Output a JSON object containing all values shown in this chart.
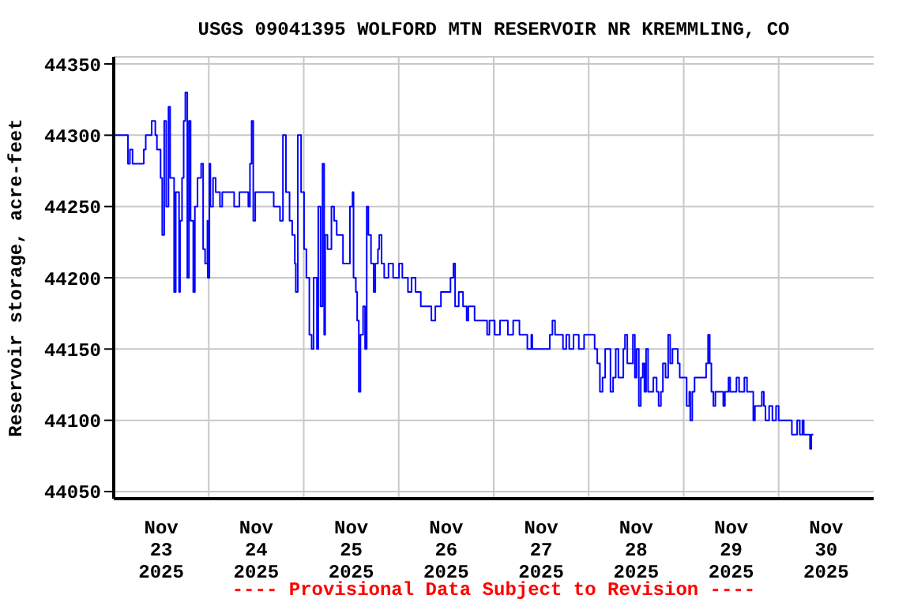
{
  "chart_data": {
    "type": "step",
    "title": "USGS 09041395 WOLFORD MTN RESERVOIR NR KREMMLING, CO",
    "ylabel": "Reservoir storage, acre-feet",
    "annotations": [
      "---- Provisional Data Subject to Revision ----"
    ],
    "x": [
      "2025-11-23T00:15",
      "2025-11-23T03:35",
      "2025-11-23T04:05",
      "2025-11-23T04:45",
      "2025-11-23T07:35",
      "2025-11-23T08:05",
      "2025-11-23T09:35",
      "2025-11-23T10:30",
      "2025-11-23T10:55",
      "2025-11-23T11:50",
      "2025-11-23T12:15",
      "2025-11-23T12:45",
      "2025-11-23T13:15",
      "2025-11-23T13:50",
      "2025-11-23T14:15",
      "2025-11-23T14:55",
      "2025-11-23T15:15",
      "2025-11-23T15:40",
      "2025-11-23T16:30",
      "2025-11-23T16:45",
      "2025-11-23T17:15",
      "2025-11-23T17:40",
      "2025-11-23T18:05",
      "2025-11-23T18:35",
      "2025-11-23T19:00",
      "2025-11-23T19:25",
      "2025-11-23T20:05",
      "2025-11-23T20:30",
      "2025-11-23T21:10",
      "2025-11-23T22:05",
      "2025-11-23T22:35",
      "2025-11-23T23:05",
      "2025-11-23T23:40",
      "2025-11-23T23:45",
      "2025-11-24T00:10",
      "2025-11-24T00:25",
      "2025-11-24T01:05",
      "2025-11-24T01:45",
      "2025-11-24T02:50",
      "2025-11-24T03:25",
      "2025-11-24T05:45",
      "2025-11-24T06:25",
      "2025-11-24T07:45",
      "2025-11-24T10:00",
      "2025-11-24T10:25",
      "2025-11-24T10:50",
      "2025-11-24T11:15",
      "2025-11-24T11:45",
      "2025-11-24T15:45",
      "2025-11-24T16:25",
      "2025-11-24T18:00",
      "2025-11-24T18:45",
      "2025-11-24T19:30",
      "2025-11-24T20:25",
      "2025-11-24T21:05",
      "2025-11-24T21:45",
      "2025-11-24T22:00",
      "2025-11-24T22:30",
      "2025-11-24T23:20",
      "2025-11-25T00:05",
      "2025-11-25T00:40",
      "2025-11-25T01:25",
      "2025-11-25T02:00",
      "2025-11-25T02:30",
      "2025-11-25T03:20",
      "2025-11-25T03:40",
      "2025-11-25T04:15",
      "2025-11-25T04:45",
      "2025-11-25T05:10",
      "2025-11-25T05:25",
      "2025-11-25T06:00",
      "2025-11-25T07:00",
      "2025-11-25T07:40",
      "2025-11-25T08:20",
      "2025-11-25T09:55",
      "2025-11-25T11:15",
      "2025-11-25T11:40",
      "2025-11-25T12:20",
      "2025-11-25T12:35",
      "2025-11-25T13:10",
      "2025-11-25T13:30",
      "2025-11-25T13:55",
      "2025-11-25T14:20",
      "2025-11-25T15:00",
      "2025-11-25T15:30",
      "2025-11-25T15:55",
      "2025-11-25T16:20",
      "2025-11-25T17:00",
      "2025-11-25T17:40",
      "2025-11-25T18:05",
      "2025-11-25T18:45",
      "2025-11-25T19:05",
      "2025-11-25T19:40",
      "2025-11-25T20:20",
      "2025-11-25T21:25",
      "2025-11-25T22:35",
      "2025-11-26T00:05",
      "2025-11-26T00:55",
      "2025-11-26T02:20",
      "2025-11-26T03:15",
      "2025-11-26T04:15",
      "2025-11-26T05:35",
      "2025-11-26T08:15",
      "2025-11-26T09:15",
      "2025-11-26T10:40",
      "2025-11-26T13:05",
      "2025-11-26T13:50",
      "2025-11-26T14:15",
      "2025-11-26T15:10",
      "2025-11-26T16:15",
      "2025-11-26T17:10",
      "2025-11-26T17:35",
      "2025-11-26T19:10",
      "2025-11-26T22:20",
      "2025-11-26T22:55",
      "2025-11-27T00:15",
      "2025-11-27T01:35",
      "2025-11-27T03:35",
      "2025-11-27T04:55",
      "2025-11-27T06:30",
      "2025-11-27T08:30",
      "2025-11-27T09:30",
      "2025-11-27T09:45",
      "2025-11-27T14:10",
      "2025-11-27T14:50",
      "2025-11-27T15:30",
      "2025-11-27T17:30",
      "2025-11-27T18:20",
      "2025-11-27T19:05",
      "2025-11-27T20:10",
      "2025-11-27T21:30",
      "2025-11-27T22:50",
      "2025-11-28T01:30",
      "2025-11-28T02:10",
      "2025-11-28T02:50",
      "2025-11-28T03:30",
      "2025-11-28T04:10",
      "2025-11-28T05:30",
      "2025-11-28T06:10",
      "2025-11-28T06:50",
      "2025-11-28T07:30",
      "2025-11-28T08:45",
      "2025-11-28T09:10",
      "2025-11-28T09:45",
      "2025-11-28T11:10",
      "2025-11-28T11:40",
      "2025-11-28T12:05",
      "2025-11-28T12:40",
      "2025-11-28T13:10",
      "2025-11-28T13:40",
      "2025-11-28T14:05",
      "2025-11-28T14:30",
      "2025-11-28T15:00",
      "2025-11-28T16:20",
      "2025-11-28T17:10",
      "2025-11-28T17:40",
      "2025-11-28T18:15",
      "2025-11-28T18:45",
      "2025-11-28T19:25",
      "2025-11-28T20:05",
      "2025-11-28T20:35",
      "2025-11-28T21:10",
      "2025-11-28T22:30",
      "2025-11-28T23:00",
      "2025-11-29T00:45",
      "2025-11-29T01:25",
      "2025-11-29T01:40",
      "2025-11-29T02:10",
      "2025-11-29T02:45",
      "2025-11-29T05:40",
      "2025-11-29T06:10",
      "2025-11-29T06:35",
      "2025-11-29T07:00",
      "2025-11-29T07:30",
      "2025-11-29T08:00",
      "2025-11-29T10:00",
      "2025-11-29T10:25",
      "2025-11-29T11:20",
      "2025-11-29T11:45",
      "2025-11-29T13:20",
      "2025-11-29T14:00",
      "2025-11-29T15:20",
      "2025-11-29T16:00",
      "2025-11-29T17:35",
      "2025-11-29T18:00",
      "2025-11-29T19:45",
      "2025-11-29T20:15",
      "2025-11-29T20:40",
      "2025-11-29T21:35",
      "2025-11-29T22:25",
      "2025-11-29T23:20",
      "2025-11-30T00:00",
      "2025-11-30T03:20",
      "2025-11-30T04:40",
      "2025-11-30T05:20",
      "2025-11-30T06:00",
      "2025-11-30T06:20",
      "2025-11-30T07:40",
      "2025-11-30T07:55",
      "2025-11-30T08:15",
      "2025-11-30T08:45"
    ],
    "series": [
      {
        "color": "#0000ff",
        "values": [
          44300,
          44280,
          44290,
          44280,
          44290,
          44300,
          44310,
          44300,
          44290,
          44270,
          44230,
          44310,
          44250,
          44320,
          44270,
          44270,
          44190,
          44260,
          44190,
          44240,
          44270,
          44310,
          44330,
          44200,
          44310,
          44240,
          44190,
          44250,
          44270,
          44280,
          44220,
          44210,
          44240,
          44200,
          44280,
          44250,
          44270,
          44260,
          44250,
          44260,
          44260,
          44250,
          44260,
          44250,
          44280,
          44310,
          44240,
          44260,
          44260,
          44250,
          44240,
          44300,
          44260,
          44240,
          44230,
          44210,
          44190,
          44300,
          44260,
          44220,
          44200,
          44160,
          44150,
          44200,
          44150,
          44250,
          44180,
          44280,
          44160,
          44230,
          44220,
          44250,
          44240,
          44230,
          44210,
          44210,
          44250,
          44260,
          44200,
          44190,
          44170,
          44120,
          44160,
          44180,
          44150,
          44250,
          44230,
          44210,
          44190,
          44210,
          44220,
          44230,
          44210,
          44200,
          44210,
          44200,
          44210,
          44200,
          44190,
          44200,
          44190,
          44180,
          44170,
          44180,
          44190,
          44200,
          44210,
          44180,
          44190,
          44180,
          44170,
          44180,
          44170,
          44160,
          44170,
          44160,
          44170,
          44160,
          44170,
          44160,
          44150,
          44160,
          44150,
          44160,
          44170,
          44160,
          44150,
          44160,
          44150,
          44160,
          44150,
          44160,
          44150,
          44140,
          44120,
          44130,
          44150,
          44120,
          44130,
          44150,
          44130,
          44150,
          44160,
          44140,
          44160,
          44130,
          44150,
          44110,
          44130,
          44140,
          44120,
          44150,
          44120,
          44130,
          44120,
          44110,
          44120,
          44140,
          44130,
          44160,
          44140,
          44150,
          44140,
          44130,
          44110,
          44120,
          44100,
          44120,
          44130,
          44140,
          44160,
          44140,
          44120,
          44110,
          44120,
          44110,
          44120,
          44130,
          44120,
          44130,
          44120,
          44130,
          44120,
          44100,
          44110,
          44120,
          44110,
          44100,
          44110,
          44100,
          44110,
          44100,
          44090,
          44100,
          44090,
          44100,
          44090,
          44090,
          44080,
          44090,
          44090
        ]
      }
    ],
    "xlim": [
      "2025-11-23T00:00",
      "2025-12-01T00:00"
    ],
    "xticks": [
      {
        "value": "2025-11-23T12:00",
        "label": "Nov\n23\n2025"
      },
      {
        "value": "2025-11-24T00:00",
        "label": null
      },
      {
        "value": "2025-11-24T12:00",
        "label": "Nov\n24\n2025"
      },
      {
        "value": "2025-11-25T00:00",
        "label": null
      },
      {
        "value": "2025-11-25T12:00",
        "label": "Nov\n25\n2025"
      },
      {
        "value": "2025-11-26T00:00",
        "label": null
      },
      {
        "value": "2025-11-26T12:00",
        "label": "Nov\n26\n2025"
      },
      {
        "value": "2025-11-27T00:00",
        "label": null
      },
      {
        "value": "2025-11-27T12:00",
        "label": "Nov\n27\n2025"
      },
      {
        "value": "2025-11-28T00:00",
        "label": null
      },
      {
        "value": "2025-11-28T12:00",
        "label": "Nov\n28\n2025"
      },
      {
        "value": "2025-11-29T00:00",
        "label": null
      },
      {
        "value": "2025-11-29T12:00",
        "label": "Nov\n29\n2025"
      },
      {
        "value": "2025-11-30T00:00",
        "label": null
      },
      {
        "value": "2025-11-30T12:00",
        "label": "Nov\n30\n2025"
      }
    ],
    "ylim": [
      44045,
      44355
    ],
    "yticks": [
      44050,
      44100,
      44150,
      44200,
      44250,
      44300,
      44350
    ],
    "grid": true,
    "marker": "none",
    "line_style": "solid"
  }
}
